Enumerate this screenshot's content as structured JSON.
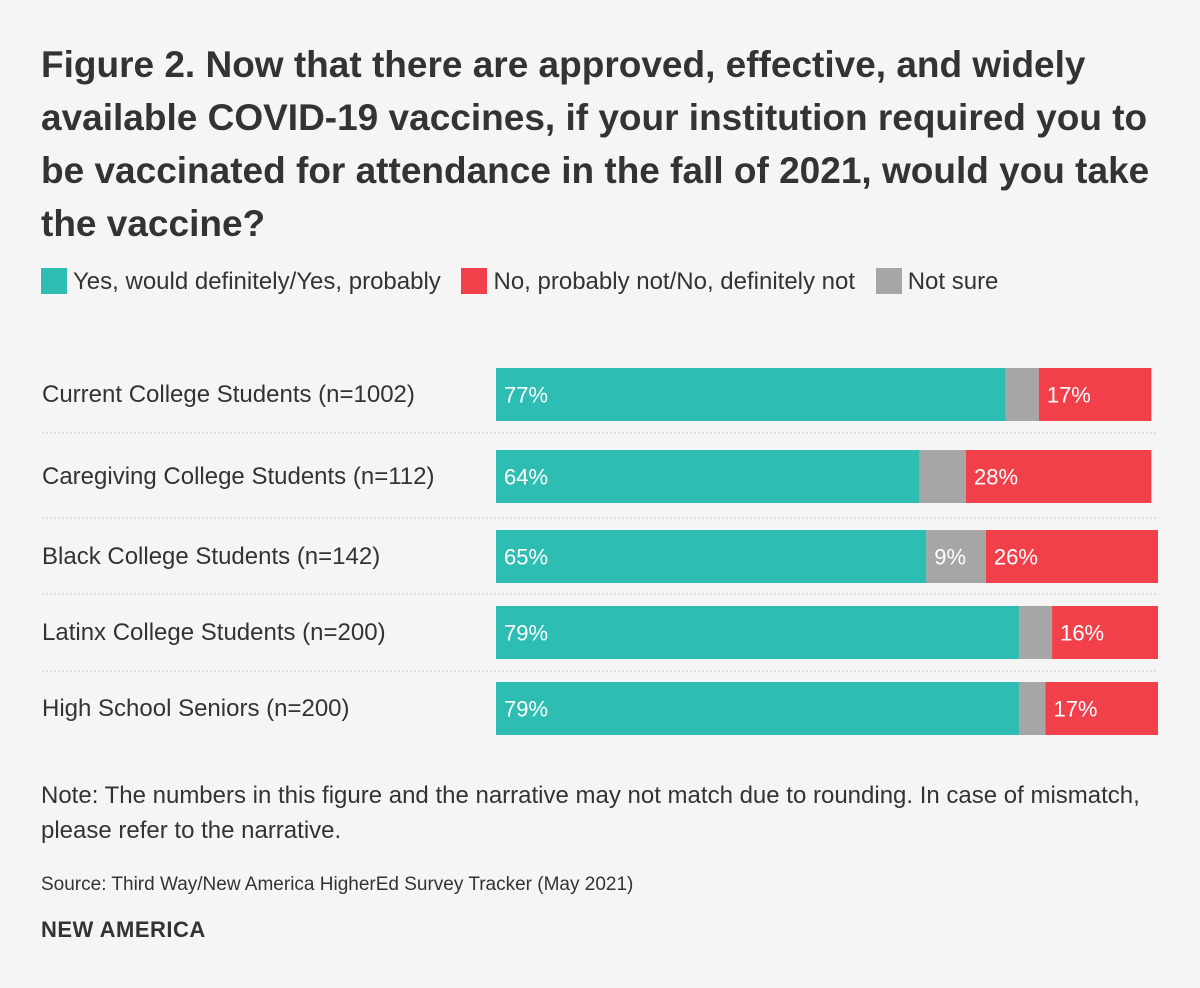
{
  "title": "Figure 2. Now that there are approved, effective, and widely available COVID-19 vaccines, if your institution required you to be vaccinated for attendance in the fall of 2021, would you take the vaccine?",
  "legend": [
    {
      "label": "Yes, would definitely/Yes, probably",
      "color": "#2ebdb3"
    },
    {
      "label": "No, probably not/No, definitely not",
      "color": "#f2404b"
    },
    {
      "label": "Not sure",
      "color": "#a6a6a6"
    }
  ],
  "chart_data": {
    "type": "bar",
    "orientation": "horizontal",
    "stacked": true,
    "categories": [
      "Current College Students (n=1002)",
      "Caregiving College Students (n=112)",
      "Black College Students (n=142)",
      "Latinx College Students (n=200)",
      "High School Seniors (n=200)"
    ],
    "series": [
      {
        "name": "Yes, would definitely/Yes, probably",
        "color": "#2ebdb3",
        "values": [
          77,
          64,
          65,
          79,
          79
        ],
        "labels": [
          "77%",
          "64%",
          "65%",
          "79%",
          "79%"
        ]
      },
      {
        "name": "Not sure",
        "color": "#a6a6a6",
        "values": [
          5,
          7,
          9,
          5,
          4
        ],
        "labels": [
          "",
          "",
          "9%",
          "",
          ""
        ]
      },
      {
        "name": "No, probably not/No, definitely not",
        "color": "#f2404b",
        "values": [
          17,
          28,
          26,
          16,
          17
        ],
        "labels": [
          "17%",
          "28%",
          "26%",
          "16%",
          "17%"
        ]
      }
    ],
    "xlim": [
      0,
      100
    ]
  },
  "note": "Note: The numbers in this figure and the narrative may not match due to rounding. In case of mismatch, please refer to the narrative.",
  "source": "Source: Third Way/New America HigherEd Survey Tracker (May 2021)",
  "brand": "NEW AMERICA"
}
